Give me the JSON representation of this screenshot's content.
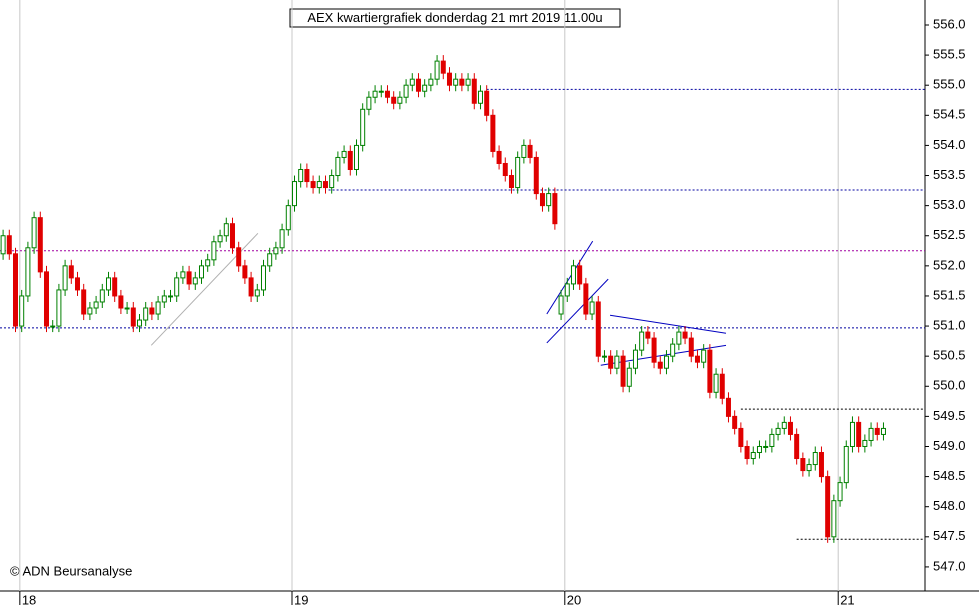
{
  "chart_data": {
    "type": "candlestick",
    "title": "AEX kwartiergrafiek donderdag 21 mrt 2019 11.00u",
    "annotation": "© ADN Beursanalyse",
    "up_color": "#008000",
    "down_color": "#e00000",
    "open": [
      552.2,
      552.5,
      552.2,
      551.0,
      551.5,
      552.3,
      552.8,
      551.9,
      551.0,
      551.0,
      551.6,
      552.0,
      551.8,
      551.6,
      551.2,
      551.3,
      551.4,
      551.6,
      551.8,
      551.5,
      551.3,
      551.3,
      551.0,
      551.1,
      551.3,
      551.2,
      551.4,
      551.5,
      551.5,
      551.8,
      551.9,
      551.7,
      551.8,
      552.0,
      552.1,
      552.4,
      552.5,
      552.7,
      552.3,
      552.0,
      551.8,
      551.5,
      551.6,
      552.0,
      552.2,
      552.3,
      552.6,
      553.0,
      553.4,
      553.6,
      553.4,
      553.3,
      553.4,
      553.3,
      553.5,
      553.8,
      553.9,
      553.6,
      554.0,
      554.6,
      554.8,
      554.9,
      554.9,
      554.8,
      554.7,
      554.8,
      555.0,
      555.1,
      554.9,
      555.0,
      555.1,
      555.4,
      555.2,
      555.0,
      555.1,
      555.0,
      555.1,
      554.7,
      554.9,
      554.5,
      553.9,
      553.7,
      553.5,
      553.3,
      553.8,
      554.0,
      553.8,
      553.2,
      553.0,
      553.2,
      551.2,
      551.5,
      551.7,
      552.0,
      551.7,
      551.2,
      551.4,
      550.5,
      550.5,
      550.3,
      550.5,
      550.0,
      550.3,
      550.6,
      550.9,
      550.8,
      550.4,
      550.3,
      550.5,
      550.7,
      550.9,
      550.8,
      550.5,
      550.4,
      550.6,
      549.9,
      550.2,
      549.8,
      549.5,
      549.3,
      549.0,
      548.8,
      548.9,
      549.0,
      549.0,
      549.2,
      549.3,
      549.4,
      549.2,
      548.8,
      548.6,
      548.7,
      548.9,
      548.5,
      547.5,
      548.1,
      548.4,
      549.0,
      549.4,
      549.0,
      549.1,
      549.3,
      549.2
    ],
    "high": [
      552.6,
      552.6,
      552.3,
      551.6,
      552.4,
      552.9,
      552.9,
      552.0,
      551.1,
      551.7,
      552.1,
      552.1,
      551.9,
      551.7,
      551.4,
      551.5,
      551.7,
      551.9,
      551.9,
      551.6,
      551.4,
      551.4,
      551.2,
      551.4,
      551.4,
      551.5,
      551.6,
      551.6,
      551.9,
      552.0,
      552.0,
      551.9,
      552.1,
      552.2,
      552.5,
      552.6,
      552.8,
      552.8,
      552.4,
      552.1,
      551.9,
      551.7,
      552.1,
      552.3,
      552.4,
      552.7,
      553.1,
      553.5,
      553.7,
      553.7,
      553.5,
      553.5,
      553.5,
      553.6,
      553.9,
      554.0,
      554.0,
      554.1,
      554.7,
      554.9,
      555.0,
      555.0,
      555.0,
      554.9,
      554.9,
      555.1,
      555.2,
      555.2,
      555.1,
      555.2,
      555.5,
      555.5,
      555.3,
      555.2,
      555.2,
      555.2,
      555.2,
      555.0,
      555.0,
      554.6,
      554.0,
      553.8,
      553.6,
      553.9,
      554.1,
      554.1,
      553.9,
      553.3,
      553.3,
      553.3,
      551.6,
      551.8,
      552.1,
      552.1,
      551.8,
      551.5,
      551.5,
      550.6,
      550.6,
      550.6,
      550.6,
      550.4,
      550.7,
      551.0,
      551.0,
      550.9,
      550.5,
      550.6,
      550.8,
      551.0,
      551.0,
      550.9,
      550.6,
      550.7,
      550.7,
      550.3,
      550.3,
      549.9,
      549.6,
      549.4,
      549.1,
      549.0,
      549.1,
      549.1,
      549.3,
      549.4,
      549.5,
      549.5,
      549.3,
      548.9,
      548.8,
      549.0,
      549.0,
      548.6,
      548.2,
      548.5,
      549.1,
      549.5,
      549.5,
      549.2,
      549.4,
      549.4,
      549.4
    ],
    "low": [
      552.1,
      552.1,
      550.9,
      550.9,
      551.4,
      552.2,
      551.8,
      550.9,
      550.9,
      550.9,
      551.5,
      551.7,
      551.5,
      551.1,
      551.1,
      551.2,
      551.3,
      551.5,
      551.4,
      551.2,
      551.2,
      550.9,
      550.9,
      551.0,
      551.1,
      551.1,
      551.3,
      551.4,
      551.4,
      551.7,
      551.6,
      551.6,
      551.7,
      551.9,
      552.0,
      552.3,
      552.4,
      552.2,
      551.9,
      551.7,
      551.4,
      551.4,
      551.5,
      551.9,
      552.1,
      552.2,
      552.5,
      552.9,
      553.3,
      553.3,
      553.2,
      553.2,
      553.2,
      553.2,
      553.4,
      553.7,
      553.5,
      553.5,
      553.9,
      554.5,
      554.7,
      554.8,
      554.7,
      554.6,
      554.6,
      554.7,
      554.9,
      554.8,
      554.8,
      554.9,
      555.0,
      555.1,
      554.9,
      554.9,
      554.9,
      554.9,
      554.6,
      554.6,
      554.4,
      553.8,
      553.6,
      553.4,
      553.2,
      553.2,
      553.7,
      553.7,
      553.1,
      552.9,
      552.9,
      552.6,
      551.1,
      551.4,
      551.6,
      551.6,
      551.1,
      551.1,
      550.4,
      550.4,
      550.2,
      550.2,
      549.9,
      549.9,
      550.2,
      550.5,
      550.7,
      550.3,
      550.2,
      550.2,
      550.4,
      550.6,
      550.7,
      550.4,
      550.3,
      550.3,
      549.8,
      549.8,
      549.7,
      549.4,
      549.2,
      548.9,
      548.7,
      548.7,
      548.8,
      548.9,
      548.9,
      549.1,
      549.2,
      549.1,
      548.7,
      548.5,
      548.5,
      548.6,
      548.4,
      547.4,
      547.4,
      548.0,
      548.3,
      548.9,
      548.9,
      548.9,
      549.0,
      549.1,
      549.1
    ],
    "close": [
      552.5,
      552.2,
      551.0,
      551.5,
      552.3,
      552.8,
      551.9,
      551.0,
      551.0,
      551.6,
      552.0,
      551.8,
      551.6,
      551.2,
      551.3,
      551.4,
      551.6,
      551.8,
      551.5,
      551.3,
      551.3,
      551.0,
      551.1,
      551.3,
      551.2,
      551.4,
      551.5,
      551.5,
      551.8,
      551.9,
      551.7,
      551.8,
      552.0,
      552.1,
      552.4,
      552.5,
      552.7,
      552.3,
      552.0,
      551.8,
      551.5,
      551.6,
      552.0,
      552.2,
      552.3,
      552.6,
      553.0,
      553.4,
      553.6,
      553.4,
      553.3,
      553.4,
      553.3,
      553.5,
      553.8,
      553.9,
      553.6,
      554.0,
      554.6,
      554.8,
      554.9,
      554.9,
      554.8,
      554.7,
      554.8,
      555.0,
      555.1,
      554.9,
      555.0,
      555.1,
      555.4,
      555.2,
      555.0,
      555.1,
      555.0,
      555.1,
      554.7,
      554.9,
      554.5,
      553.9,
      553.7,
      553.5,
      553.3,
      553.8,
      554.0,
      553.8,
      553.2,
      553.0,
      553.2,
      552.7,
      551.5,
      551.7,
      552.0,
      551.7,
      551.2,
      551.4,
      550.5,
      550.5,
      550.3,
      550.5,
      550.0,
      550.3,
      550.6,
      550.9,
      550.8,
      550.4,
      550.3,
      550.5,
      550.7,
      550.9,
      550.8,
      550.5,
      550.4,
      550.6,
      549.9,
      550.2,
      549.8,
      549.5,
      549.3,
      549.0,
      548.8,
      548.9,
      549.0,
      549.0,
      549.2,
      549.3,
      549.4,
      549.2,
      548.8,
      548.6,
      548.7,
      548.9,
      548.5,
      547.5,
      548.1,
      548.4,
      549.0,
      549.4,
      549.0,
      549.1,
      549.3,
      549.2,
      549.3
    ],
    "xlim": [
      -0.5,
      148.7
    ],
    "xticks": [
      {
        "value": 2.7,
        "label": "18"
      },
      {
        "value": 46.6,
        "label": "19"
      },
      {
        "value": 90.6,
        "label": "20"
      },
      {
        "value": 134.7,
        "label": "21"
      }
    ],
    "ylim": [
      546.6,
      556.415
    ],
    "yticks": [
      {
        "value": 547.0,
        "label": "547.0"
      },
      {
        "value": 547.5,
        "label": "547.5"
      },
      {
        "value": 548.0,
        "label": "548.0"
      },
      {
        "value": 548.5,
        "label": "548.5"
      },
      {
        "value": 549.0,
        "label": "549.0"
      },
      {
        "value": 549.5,
        "label": "549.5"
      },
      {
        "value": 550.0,
        "label": "550.0"
      },
      {
        "value": 550.5,
        "label": "550.5"
      },
      {
        "value": 551.0,
        "label": "551.0"
      },
      {
        "value": 551.5,
        "label": "551.5"
      },
      {
        "value": 552.0,
        "label": "552.0"
      },
      {
        "value": 552.5,
        "label": "552.5"
      },
      {
        "value": 553.0,
        "label": "553.0"
      },
      {
        "value": 553.5,
        "label": "553.5"
      },
      {
        "value": 554.0,
        "label": "554.0"
      },
      {
        "value": 554.5,
        "label": "554.5"
      },
      {
        "value": 555.0,
        "label": "555.0"
      },
      {
        "value": 555.5,
        "label": "555.5"
      },
      {
        "value": 556.0,
        "label": "556.0"
      }
    ],
    "lines": [
      {
        "color": "#0000a0",
        "dashed": true,
        "x": [
          78,
          148.7
        ],
        "y": [
          554.93,
          554.93
        ]
      },
      {
        "color": "#0000a0",
        "dashed": true,
        "x": [
          52.5,
          148.7
        ],
        "y": [
          553.26,
          553.26
        ]
      },
      {
        "color": "#a000a0",
        "dashed": true,
        "x": [
          -0.5,
          148.7
        ],
        "y": [
          552.25,
          552.25
        ]
      },
      {
        "color": "#0000a0",
        "dashed": true,
        "x": [
          -0.5,
          148.7
        ],
        "y": [
          550.97,
          550.97
        ]
      },
      {
        "color": "#000000",
        "dashed": true,
        "x": [
          119,
          148.7
        ],
        "y": [
          549.62,
          549.62
        ]
      },
      {
        "color": "#000000",
        "dashed": true,
        "x": [
          128,
          148.7
        ],
        "y": [
          547.46,
          547.46
        ]
      },
      {
        "color": "#b0b0b0",
        "dashed": false,
        "x": [
          23.9,
          41.1
        ],
        "y": [
          550.68,
          552.54
        ]
      },
      {
        "color": "#0000c0",
        "dashed": false,
        "x": [
          87.7,
          95.1
        ],
        "y": [
          551.2,
          552.41
        ]
      },
      {
        "color": "#0000c0",
        "dashed": false,
        "x": [
          87.7,
          97.6
        ],
        "y": [
          550.72,
          551.78
        ]
      },
      {
        "color": "#0000c0",
        "dashed": false,
        "x": [
          97.9,
          116.6
        ],
        "y": [
          551.18,
          550.88
        ]
      },
      {
        "color": "#0000c0",
        "dashed": false,
        "x": [
          96.4,
          116.6
        ],
        "y": [
          550.35,
          550.68
        ]
      }
    ]
  }
}
